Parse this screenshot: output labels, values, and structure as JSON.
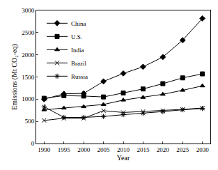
{
  "chart_data": {
    "type": "line",
    "x_label": "Year",
    "y_label": "Emissions (Mt CO₂-eq)",
    "x": [
      1990,
      1995,
      2000,
      2005,
      2010,
      2015,
      2020,
      2025,
      2030
    ],
    "series": [
      {
        "name": "China",
        "color": "#000000",
        "marker": "diamond",
        "line_style": "solid",
        "values": [
          1000,
          1120,
          1130,
          1400,
          1580,
          1730,
          1950,
          2330,
          2820
        ]
      },
      {
        "name": "U.S.",
        "color": "#000000",
        "marker": "square",
        "line_style": "solid",
        "values": [
          1020,
          1080,
          1070,
          1050,
          1140,
          1230,
          1350,
          1480,
          1570
        ]
      },
      {
        "name": "India",
        "color": "#000000",
        "marker": "triangle",
        "line_style": "solid",
        "values": [
          760,
          800,
          830,
          880,
          980,
          1040,
          1110,
          1200,
          1300
        ]
      },
      {
        "name": "Brazil",
        "color": "#000000",
        "marker": "x",
        "line_style": "solid",
        "values": [
          520,
          570,
          570,
          740,
          700,
          720,
          740,
          770,
          800
        ]
      },
      {
        "name": "Russia",
        "color": "#000000",
        "marker": "asterisk",
        "line_style": "solid",
        "values": [
          830,
          590,
          590,
          610,
          650,
          680,
          720,
          760,
          790
        ]
      }
    ],
    "xlim": [
      1988,
      2032
    ],
    "xticks": [
      1990,
      1995,
      2000,
      2005,
      2010,
      2015,
      2020,
      2025,
      2030
    ],
    "ylim": [
      0,
      3000
    ],
    "yticks": [
      0,
      500,
      1000,
      1500,
      2000,
      2500,
      3000
    ],
    "grid": false,
    "legend": "top-left"
  }
}
